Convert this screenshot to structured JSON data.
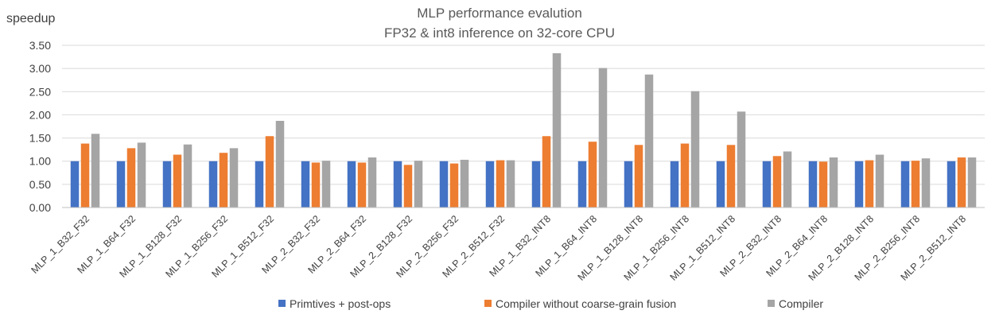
{
  "chart_data": {
    "type": "bar",
    "title": [
      "MLP performance evalution",
      "FP32 & int8 inference on 32-core CPU"
    ],
    "ylabel": "speedup",
    "xlabel": "",
    "ylim": [
      0,
      3.5
    ],
    "yticks": [
      "0.00",
      "0.50",
      "1.00",
      "1.50",
      "2.00",
      "2.50",
      "3.00",
      "3.50"
    ],
    "grid": true,
    "legend_position": "bottom",
    "categories": [
      "MLP_1_B32_F32",
      "MLP_1_B64_F32",
      "MLP_1_B128_F32",
      "MLP_1_B256_F32",
      "MLP_1_B512_F32",
      "MLP_2_B32_F32",
      "MLP_2_B64_F32",
      "MLP_2_B128_F32",
      "MLP_2_B256_F32",
      "MLP_2_B512_F32",
      "MLP_1_B32_INT8",
      "MLP_1_B64_INT8",
      "MLP_1_B128_INT8",
      "MLP_1_B256_INT8",
      "MLP_1_B512_INT8",
      "MLP_2_B32_INT8",
      "MLP_2_B64_INT8",
      "MLP_2_B128_INT8",
      "MLP_2_B256_INT8",
      "MLP_2_B512_INT8"
    ],
    "series": [
      {
        "name": "Primtives + post-ops",
        "color": "#4472c4",
        "values": [
          1.0,
          1.0,
          1.0,
          1.0,
          1.0,
          1.0,
          1.0,
          1.0,
          1.0,
          1.0,
          1.0,
          1.0,
          1.0,
          1.0,
          1.0,
          1.0,
          1.0,
          1.0,
          1.0,
          1.0
        ]
      },
      {
        "name": "Compiler without coarse-grain fusion",
        "color": "#ed7d31",
        "values": [
          1.38,
          1.28,
          1.14,
          1.18,
          1.54,
          0.97,
          0.97,
          0.92,
          0.95,
          1.02,
          1.54,
          1.42,
          1.35,
          1.38,
          1.35,
          1.11,
          0.99,
          1.02,
          1.01,
          1.08
        ]
      },
      {
        "name": "Compiler",
        "color": "#a5a5a5",
        "values": [
          1.59,
          1.4,
          1.36,
          1.28,
          1.87,
          1.01,
          1.08,
          1.01,
          1.03,
          1.02,
          3.33,
          3.01,
          2.87,
          2.51,
          2.07,
          1.21,
          1.08,
          1.14,
          1.06,
          1.08
        ]
      }
    ]
  }
}
